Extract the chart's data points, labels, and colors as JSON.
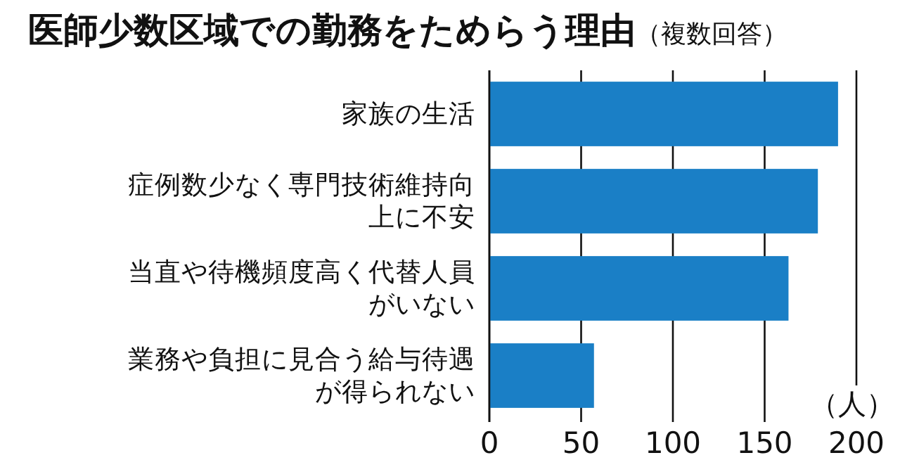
{
  "chart_data": {
    "type": "bar",
    "orientation": "horizontal",
    "title": "医師少数区域での勤務をためらう理由",
    "subtitle": "（複数回答）",
    "xlabel": "（人）",
    "categories": [
      "家族の生活",
      "症例数少なく専門技術維持向上に不安",
      "当直や待機頻度高く代替人員がいない",
      "業務や負担に見合う給与待遇が得られない"
    ],
    "values": [
      190,
      179,
      163,
      57
    ],
    "color": "#1a7fc6",
    "xlim": [
      0,
      200
    ],
    "xticks": [
      0,
      50,
      100,
      150,
      200
    ],
    "grid": "x"
  }
}
